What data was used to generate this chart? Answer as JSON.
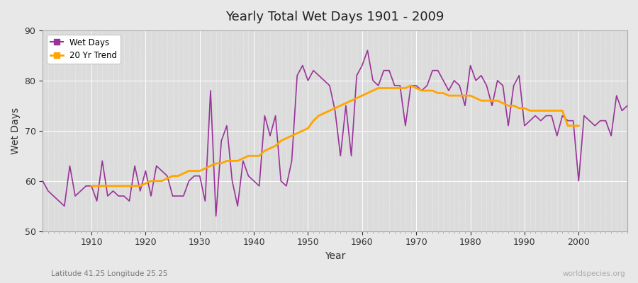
{
  "title": "Yearly Total Wet Days 1901 - 2009",
  "xlabel": "Year",
  "ylabel": "Wet Days",
  "subtitle": "Latitude 41.25 Longitude 25.25",
  "watermark": "worldspecies.org",
  "ylim": [
    50,
    90
  ],
  "yticks": [
    50,
    60,
    70,
    80,
    90
  ],
  "bg_color": "#e8e8e8",
  "plot_bg_color": "#dcdcdc",
  "wet_days_color": "#993399",
  "trend_color": "#ffa500",
  "wet_days_label": "Wet Days",
  "trend_label": "20 Yr Trend",
  "years": [
    1901,
    1902,
    1903,
    1904,
    1905,
    1906,
    1907,
    1908,
    1909,
    1910,
    1911,
    1912,
    1913,
    1914,
    1915,
    1916,
    1917,
    1918,
    1919,
    1920,
    1921,
    1922,
    1923,
    1924,
    1925,
    1926,
    1927,
    1928,
    1929,
    1930,
    1931,
    1932,
    1933,
    1934,
    1935,
    1936,
    1937,
    1938,
    1939,
    1940,
    1941,
    1942,
    1943,
    1944,
    1945,
    1946,
    1947,
    1948,
    1949,
    1950,
    1951,
    1952,
    1953,
    1954,
    1955,
    1956,
    1957,
    1958,
    1959,
    1960,
    1961,
    1962,
    1963,
    1964,
    1965,
    1966,
    1967,
    1968,
    1969,
    1970,
    1971,
    1972,
    1973,
    1974,
    1975,
    1976,
    1977,
    1978,
    1979,
    1980,
    1981,
    1982,
    1983,
    1984,
    1985,
    1986,
    1987,
    1988,
    1989,
    1990,
    1991,
    1992,
    1993,
    1994,
    1995,
    1996,
    1997,
    1998,
    1999,
    2000,
    2001,
    2002,
    2003,
    2004,
    2005,
    2006,
    2007,
    2008,
    2009
  ],
  "wet_days": [
    60,
    58,
    57,
    56,
    55,
    63,
    57,
    58,
    59,
    59,
    56,
    64,
    57,
    58,
    57,
    57,
    56,
    63,
    58,
    62,
    57,
    63,
    62,
    61,
    57,
    57,
    57,
    60,
    61,
    61,
    56,
    78,
    53,
    68,
    71,
    60,
    55,
    64,
    61,
    60,
    59,
    73,
    69,
    73,
    60,
    59,
    64,
    81,
    83,
    80,
    82,
    81,
    80,
    79,
    74,
    65,
    75,
    65,
    81,
    83,
    86,
    80,
    79,
    82,
    82,
    79,
    79,
    71,
    79,
    79,
    78,
    79,
    82,
    82,
    80,
    78,
    80,
    79,
    75,
    83,
    80,
    81,
    79,
    75,
    80,
    79,
    71,
    79,
    81,
    71,
    72,
    73,
    72,
    73,
    73,
    69,
    73,
    72,
    72,
    60,
    73,
    72,
    71,
    72,
    72,
    69,
    77,
    74,
    75
  ],
  "trend_years": [
    1910,
    1911,
    1912,
    1913,
    1914,
    1915,
    1916,
    1917,
    1918,
    1919,
    1920,
    1921,
    1922,
    1923,
    1924,
    1925,
    1926,
    1927,
    1928,
    1929,
    1930,
    1931,
    1932,
    1933,
    1934,
    1935,
    1936,
    1937,
    1938,
    1939,
    1940,
    1941,
    1942,
    1943,
    1944,
    1945,
    1946,
    1947,
    1948,
    1949,
    1950,
    1951,
    1952,
    1953,
    1954,
    1955,
    1956,
    1957,
    1958,
    1959,
    1960,
    1961,
    1962,
    1963,
    1964,
    1965,
    1966,
    1967,
    1968,
    1969,
    1970,
    1971,
    1972,
    1973,
    1974,
    1975,
    1976,
    1977,
    1978,
    1979,
    1980,
    1981,
    1982,
    1983,
    1984,
    1985,
    1986,
    1987,
    1988,
    1989,
    1990,
    1991,
    1992,
    1993,
    1994,
    1995,
    1996,
    1997,
    1998,
    1999,
    2000
  ],
  "trend_values": [
    59.0,
    59.0,
    59.0,
    59.0,
    59.0,
    59.0,
    59.0,
    59.0,
    59.0,
    59.0,
    59.5,
    60.0,
    60.0,
    60.0,
    60.5,
    61.0,
    61.0,
    61.5,
    62.0,
    62.0,
    62.0,
    62.5,
    63.0,
    63.5,
    63.5,
    64.0,
    64.0,
    64.0,
    64.5,
    65.0,
    65.0,
    65.0,
    66.0,
    66.5,
    67.0,
    68.0,
    68.5,
    69.0,
    69.5,
    70.0,
    70.5,
    72.0,
    73.0,
    73.5,
    74.0,
    74.5,
    75.0,
    75.5,
    76.0,
    76.5,
    77.0,
    77.5,
    78.0,
    78.5,
    78.5,
    78.5,
    78.5,
    78.5,
    78.5,
    79.0,
    78.5,
    78.0,
    78.0,
    78.0,
    77.5,
    77.5,
    77.0,
    77.0,
    77.0,
    77.0,
    77.0,
    76.5,
    76.0,
    76.0,
    76.0,
    76.0,
    75.5,
    75.0,
    75.0,
    74.5,
    74.5,
    74.0,
    74.0,
    74.0,
    74.0,
    74.0,
    74.0,
    74.0,
    71.0,
    71.0,
    71.0
  ]
}
